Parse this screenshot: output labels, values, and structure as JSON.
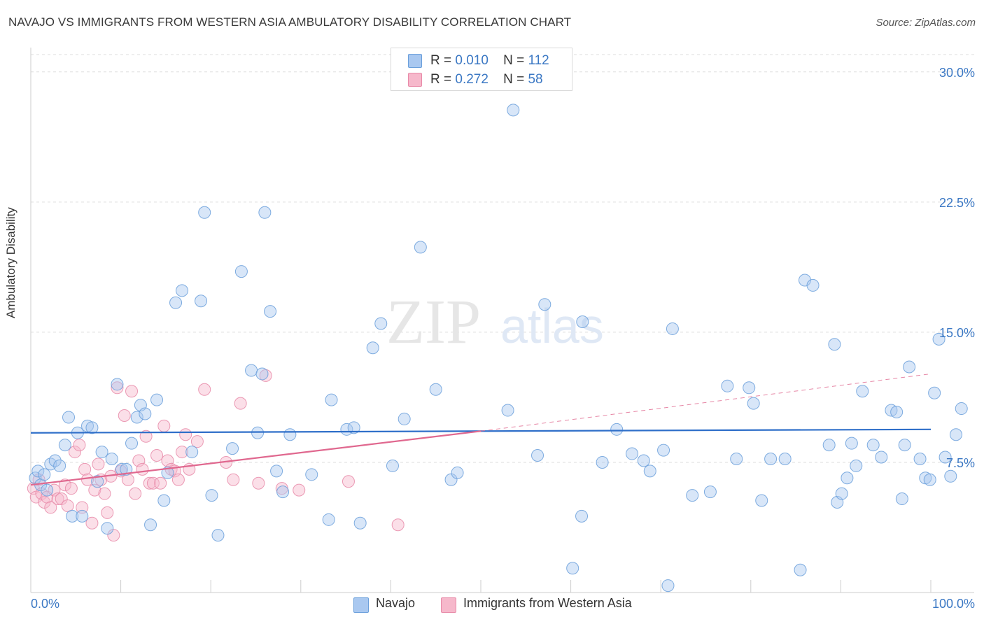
{
  "header": {
    "title": "NAVAJO VS IMMIGRANTS FROM WESTERN ASIA AMBULATORY DISABILITY CORRELATION CHART",
    "source": "Source: ZipAtlas.com"
  },
  "watermark": {
    "zip": "ZIP",
    "atlas": "atlas"
  },
  "legend": {
    "navajo": {
      "r_label": "R =",
      "r_value": "0.010",
      "n_label": "N =",
      "n_value": "112"
    },
    "immigrants": {
      "r_label": "R =",
      "r_value": "0.272",
      "n_label": "N =",
      "n_value": "58"
    }
  },
  "colors": {
    "navajo_fill": "#a9c8f0",
    "navajo_stroke": "#6a9fdb",
    "navajo_line": "#2f6fc9",
    "immigrants_fill": "#f6b8cb",
    "immigrants_stroke": "#e88aa8",
    "immigrants_line": "#e0688f",
    "grid": "#dddddd",
    "axis_text": "#3b78c4"
  },
  "chart_data": {
    "type": "scatter",
    "title": "NAVAJO VS IMMIGRANTS FROM WESTERN ASIA AMBULATORY DISABILITY CORRELATION CHART",
    "xlabel": "",
    "ylabel": "Ambulatory Disability",
    "xlim": [
      0,
      100
    ],
    "ylim": [
      0,
      31
    ],
    "x_tick_labels": [
      "0.0%",
      "100.0%"
    ],
    "y_ticks": [
      7.5,
      15.0,
      22.5,
      30.0
    ],
    "y_tick_labels": [
      "7.5%",
      "15.0%",
      "22.5%",
      "30.0%"
    ],
    "grid": true,
    "legend_position": "bottom-center",
    "series": [
      {
        "name": "Navajo",
        "trend": {
          "x": [
            0,
            100
          ],
          "y": [
            9.2,
            9.4
          ]
        },
        "points": [
          [
            0.5,
            6.6
          ],
          [
            0.8,
            7.0
          ],
          [
            1.1,
            6.2
          ],
          [
            1.5,
            6.8
          ],
          [
            1.8,
            5.9
          ],
          [
            2.2,
            7.4
          ],
          [
            2.7,
            7.6
          ],
          [
            3.2,
            7.3
          ],
          [
            3.8,
            8.5
          ],
          [
            4.2,
            10.1
          ],
          [
            4.6,
            4.4
          ],
          [
            5.2,
            9.2
          ],
          [
            5.7,
            4.4
          ],
          [
            6.3,
            9.6
          ],
          [
            6.8,
            9.5
          ],
          [
            7.4,
            6.4
          ],
          [
            7.9,
            8.1
          ],
          [
            8.5,
            3.7
          ],
          [
            9.0,
            7.7
          ],
          [
            9.6,
            12.0
          ],
          [
            10.1,
            7.1
          ],
          [
            10.6,
            7.1
          ],
          [
            11.2,
            8.6
          ],
          [
            11.8,
            10.1
          ],
          [
            12.2,
            10.8
          ],
          [
            12.7,
            10.3
          ],
          [
            13.3,
            3.9
          ],
          [
            14.0,
            11.1
          ],
          [
            14.8,
            5.3
          ],
          [
            15.2,
            6.9
          ],
          [
            16.1,
            16.7
          ],
          [
            16.8,
            17.4
          ],
          [
            17.9,
            8.1
          ],
          [
            18.9,
            16.8
          ],
          [
            19.3,
            21.9
          ],
          [
            20.1,
            5.6
          ],
          [
            20.8,
            3.3
          ],
          [
            22.4,
            8.3
          ],
          [
            23.4,
            18.5
          ],
          [
            24.5,
            12.8
          ],
          [
            25.2,
            9.2
          ],
          [
            25.7,
            12.6
          ],
          [
            26.0,
            21.9
          ],
          [
            26.6,
            16.2
          ],
          [
            27.3,
            7.0
          ],
          [
            28.0,
            5.8
          ],
          [
            28.8,
            9.1
          ],
          [
            31.2,
            6.8
          ],
          [
            33.1,
            4.2
          ],
          [
            33.4,
            11.1
          ],
          [
            35.1,
            9.4
          ],
          [
            35.9,
            9.5
          ],
          [
            36.6,
            4.0
          ],
          [
            38.0,
            14.1
          ],
          [
            38.9,
            15.5
          ],
          [
            40.2,
            7.3
          ],
          [
            41.5,
            10.0
          ],
          [
            43.3,
            19.9
          ],
          [
            45.0,
            11.7
          ],
          [
            46.7,
            6.5
          ],
          [
            47.4,
            6.9
          ],
          [
            53.0,
            10.5
          ],
          [
            53.6,
            27.8
          ],
          [
            56.3,
            7.9
          ],
          [
            57.1,
            16.6
          ],
          [
            60.2,
            1.4
          ],
          [
            61.2,
            4.4
          ],
          [
            61.3,
            15.6
          ],
          [
            63.5,
            7.5
          ],
          [
            65.1,
            9.4
          ],
          [
            66.8,
            8.0
          ],
          [
            68.1,
            7.6
          ],
          [
            68.8,
            7.0
          ],
          [
            70.3,
            8.2
          ],
          [
            70.8,
            0.4
          ],
          [
            71.3,
            15.2
          ],
          [
            73.5,
            5.6
          ],
          [
            75.5,
            5.8
          ],
          [
            77.4,
            11.9
          ],
          [
            78.4,
            7.7
          ],
          [
            79.8,
            11.8
          ],
          [
            80.3,
            10.9
          ],
          [
            81.2,
            5.3
          ],
          [
            82.2,
            7.7
          ],
          [
            83.8,
            7.7
          ],
          [
            85.5,
            1.3
          ],
          [
            86.0,
            18.0
          ],
          [
            86.9,
            17.7
          ],
          [
            88.7,
            8.5
          ],
          [
            89.3,
            14.3
          ],
          [
            89.6,
            5.2
          ],
          [
            90.1,
            5.7
          ],
          [
            90.7,
            6.6
          ],
          [
            91.2,
            8.6
          ],
          [
            91.7,
            7.3
          ],
          [
            92.4,
            11.6
          ],
          [
            93.6,
            8.5
          ],
          [
            94.5,
            7.8
          ],
          [
            95.6,
            10.5
          ],
          [
            96.2,
            10.4
          ],
          [
            96.8,
            5.4
          ],
          [
            97.1,
            8.5
          ],
          [
            97.6,
            13.0
          ],
          [
            98.8,
            7.7
          ],
          [
            99.4,
            6.6
          ],
          [
            99.9,
            6.5
          ],
          [
            100.4,
            11.5
          ],
          [
            100.9,
            14.6
          ],
          [
            101.6,
            7.8
          ],
          [
            102.2,
            6.7
          ],
          [
            102.8,
            9.1
          ],
          [
            103.4,
            10.6
          ]
        ]
      },
      {
        "name": "Immigrants from Western Asia",
        "trend": {
          "x": [
            0,
            50
          ],
          "y": [
            6.2,
            9.3
          ]
        },
        "trend_extension": {
          "x": [
            50,
            100
          ],
          "y": [
            9.3,
            12.6
          ]
        },
        "points": [
          [
            0.3,
            6.0
          ],
          [
            0.6,
            5.5
          ],
          [
            0.9,
            6.5
          ],
          [
            1.2,
            5.7
          ],
          [
            1.5,
            5.2
          ],
          [
            1.8,
            5.5
          ],
          [
            2.2,
            4.9
          ],
          [
            2.6,
            5.9
          ],
          [
            3.0,
            5.4
          ],
          [
            3.4,
            5.4
          ],
          [
            3.8,
            6.2
          ],
          [
            4.1,
            5.0
          ],
          [
            4.5,
            6.0
          ],
          [
            4.9,
            8.1
          ],
          [
            5.4,
            8.5
          ],
          [
            5.7,
            4.9
          ],
          [
            6.0,
            7.1
          ],
          [
            6.3,
            6.5
          ],
          [
            6.8,
            4.0
          ],
          [
            7.1,
            5.9
          ],
          [
            7.5,
            7.4
          ],
          [
            7.8,
            6.5
          ],
          [
            8.2,
            5.7
          ],
          [
            8.5,
            4.6
          ],
          [
            8.9,
            6.7
          ],
          [
            9.2,
            3.3
          ],
          [
            9.6,
            11.8
          ],
          [
            10.0,
            7.0
          ],
          [
            10.4,
            10.2
          ],
          [
            10.8,
            6.5
          ],
          [
            11.2,
            11.6
          ],
          [
            11.6,
            5.7
          ],
          [
            12.0,
            7.6
          ],
          [
            12.4,
            7.1
          ],
          [
            12.8,
            9.0
          ],
          [
            13.2,
            6.3
          ],
          [
            13.6,
            6.3
          ],
          [
            14.0,
            7.9
          ],
          [
            14.4,
            6.3
          ],
          [
            14.8,
            9.6
          ],
          [
            15.2,
            7.6
          ],
          [
            15.6,
            7.1
          ],
          [
            16.0,
            7.0
          ],
          [
            16.4,
            6.5
          ],
          [
            16.8,
            8.1
          ],
          [
            17.2,
            9.1
          ],
          [
            17.6,
            7.1
          ],
          [
            18.5,
            8.7
          ],
          [
            19.3,
            11.7
          ],
          [
            21.7,
            7.5
          ],
          [
            22.5,
            6.5
          ],
          [
            23.3,
            10.9
          ],
          [
            25.3,
            6.3
          ],
          [
            26.1,
            12.5
          ],
          [
            27.9,
            6.0
          ],
          [
            29.8,
            5.9
          ],
          [
            35.3,
            6.4
          ],
          [
            40.8,
            3.9
          ]
        ]
      }
    ]
  },
  "bottom_legend": {
    "navajo_label": "Navajo",
    "immigrants_label": "Immigrants from Western Asia"
  }
}
